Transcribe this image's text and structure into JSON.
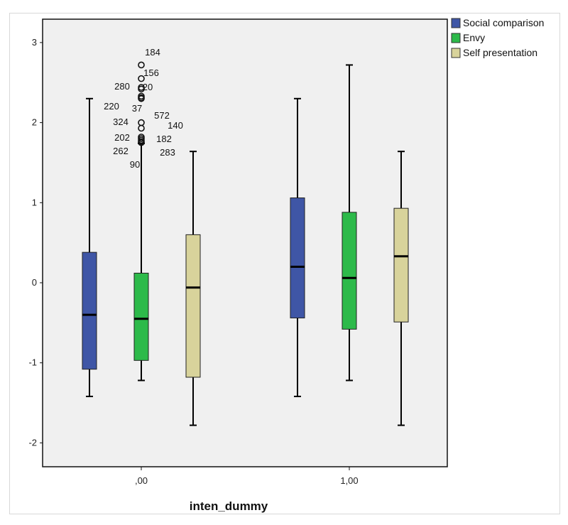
{
  "chart_data": {
    "type": "boxplot",
    "xlabel": "inten_dummy",
    "ylabel": "",
    "categories": [
      ",00",
      "1,00"
    ],
    "ylim": [
      -2.3,
      3.3
    ],
    "yticks": [
      "-2",
      "-1",
      "0",
      "1",
      "2",
      "3"
    ],
    "grid": false,
    "legend_placement": "top-right (outside)",
    "series": [
      {
        "name": "Social comparison",
        "color": "#3f56a6",
        "boxes": [
          {
            "whisker_low": -1.42,
            "q1": -1.08,
            "median": -0.4,
            "q3": 0.38,
            "whisker_high": 2.3
          },
          {
            "whisker_low": -1.42,
            "q1": -0.44,
            "median": 0.2,
            "q3": 1.06,
            "whisker_high": 2.3
          }
        ]
      },
      {
        "name": "Envy",
        "color": "#2dba4a",
        "boxes": [
          {
            "whisker_low": -1.22,
            "q1": -0.97,
            "median": -0.45,
            "q3": 0.12,
            "whisker_high": 1.74
          },
          {
            "whisker_low": -1.22,
            "q1": -0.58,
            "median": 0.06,
            "q3": 0.88,
            "whisker_high": 2.72
          }
        ]
      },
      {
        "name": "Self presentation",
        "color": "#d8d39b",
        "boxes": [
          {
            "whisker_low": -1.78,
            "q1": -1.18,
            "median": -0.06,
            "q3": 0.6,
            "whisker_high": 1.64
          },
          {
            "whisker_low": -1.78,
            "q1": -0.49,
            "median": 0.33,
            "q3": 0.93,
            "whisker_high": 1.64
          }
        ]
      }
    ],
    "outliers": [
      {
        "series": "Envy",
        "category": ",00",
        "value": 2.72,
        "label": "184"
      },
      {
        "series": "Envy",
        "category": ",00",
        "value": 2.55,
        "label": "156"
      },
      {
        "series": "Envy",
        "category": ",00",
        "value": 2.44,
        "label": "280"
      },
      {
        "series": "Envy",
        "category": ",00",
        "value": 2.42,
        "label": "20"
      },
      {
        "series": "Envy",
        "category": ",00",
        "value": 2.33,
        "label": "220"
      },
      {
        "series": "Envy",
        "category": ",00",
        "value": 2.31,
        "label": "37"
      },
      {
        "series": "Envy",
        "category": ",00",
        "value": 2.3,
        "label": "572"
      },
      {
        "series": "Envy",
        "category": ",00",
        "value": 2.0,
        "label": "140"
      },
      {
        "series": "Envy",
        "category": ",00",
        "value": 1.93,
        "label": "324"
      },
      {
        "series": "Envy",
        "category": ",00",
        "value": 1.82,
        "label": "202"
      },
      {
        "series": "Envy",
        "category": ",00",
        "value": 1.8,
        "label": "182"
      },
      {
        "series": "Envy",
        "category": ",00",
        "value": 1.78,
        "label": "262"
      },
      {
        "series": "Envy",
        "category": ",00",
        "value": 1.76,
        "label": "283"
      },
      {
        "series": "Envy",
        "category": ",00",
        "value": 1.75,
        "label": "90"
      }
    ]
  }
}
